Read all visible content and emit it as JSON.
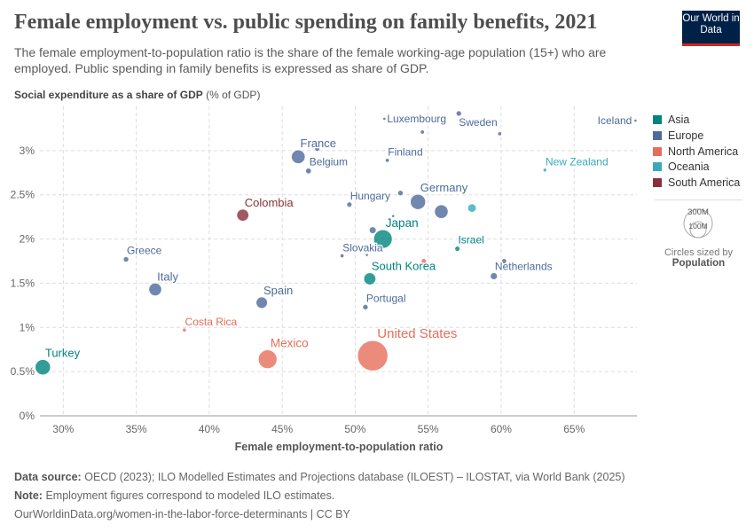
{
  "header": {
    "title": "Female employment vs. public spending on family benefits, 2021",
    "subtitle": "The female employment-to-population ratio is the share of the female working-age population (15+) who are employed. Public spending in family benefits is expressed as share of GDP.",
    "logo": "Our World in Data"
  },
  "chart_data": {
    "type": "scatter",
    "title": "Female employment vs. public spending on family benefits, 2021",
    "ylabel_bold": "Social expenditure as a share of GDP",
    "ylabel_unit": "(% of GDP)",
    "xlabel": "Female employment-to-population ratio",
    "xlim": [
      28.4,
      69.3
    ],
    "ylim": [
      0,
      3.5
    ],
    "xticks": [
      "30%",
      "35%",
      "40%",
      "45%",
      "50%",
      "55%",
      "60%",
      "65%"
    ],
    "xtick_values": [
      30,
      35,
      40,
      45,
      50,
      55,
      60,
      65
    ],
    "yticks": [
      "0%",
      "0.5%",
      "1%",
      "1.5%",
      "2%",
      "2.5%",
      "3%"
    ],
    "ytick_values": [
      0,
      0.5,
      1,
      1.5,
      2,
      2.5,
      3
    ],
    "grid": true,
    "legend_position": "right",
    "colors": {
      "Asia": "#00847e",
      "Europe": "#4c6a9c",
      "North America": "#e56e5a",
      "Oceania": "#38aaba",
      "South America": "#883039"
    },
    "legend": [
      "Asia",
      "Europe",
      "North America",
      "Oceania",
      "South America"
    ],
    "size_legend": {
      "large": "300M",
      "small": "100M",
      "caption": "Circles sized by",
      "variable": "Population",
      "large_value": 300,
      "small_value": 100
    },
    "points": [
      {
        "label": "Turkey",
        "region": "Asia",
        "x": 28.6,
        "y": 0.55,
        "pop": 85
      },
      {
        "label": "Greece",
        "region": "Europe",
        "x": 34.3,
        "y": 1.77,
        "pop": 10.4
      },
      {
        "label": "Italy",
        "region": "Europe",
        "x": 36.3,
        "y": 1.43,
        "pop": 59
      },
      {
        "label": "Costa Rica",
        "region": "North America",
        "x": 38.3,
        "y": 0.97,
        "pop": 5.1
      },
      {
        "label": "Colombia",
        "region": "South America",
        "x": 42.3,
        "y": 2.27,
        "pop": 52
      },
      {
        "label": "Spain",
        "region": "Europe",
        "x": 43.6,
        "y": 1.28,
        "pop": 47
      },
      {
        "label": "Mexico",
        "region": "North America",
        "x": 44.0,
        "y": 0.64,
        "pop": 127
      },
      {
        "label": "",
        "region": "Europe",
        "x": 47.4,
        "y": 3.02,
        "pop": 9
      },
      {
        "label": "France",
        "region": "Europe",
        "x": 46.1,
        "y": 2.93,
        "pop": 68
      },
      {
        "label": "Belgium",
        "region": "Europe",
        "x": 46.8,
        "y": 2.77,
        "pop": 11.6
      },
      {
        "label": "Luxembourg",
        "region": "Europe",
        "x": 52.0,
        "y": 3.36,
        "pop": 0.6
      },
      {
        "label": "",
        "region": "Europe",
        "x": 54.6,
        "y": 3.21,
        "pop": 5.9
      },
      {
        "label": "Sweden",
        "region": "Europe",
        "x": 57.1,
        "y": 3.42,
        "pop": 10.4
      },
      {
        "label": "",
        "region": "Europe",
        "x": 59.9,
        "y": 3.19,
        "pop": 5.4
      },
      {
        "label": "Iceland",
        "region": "Europe",
        "x": 69.2,
        "y": 3.34,
        "pop": 0.37
      },
      {
        "label": "Finland",
        "region": "Europe",
        "x": 52.2,
        "y": 2.89,
        "pop": 5.5
      },
      {
        "label": "New Zealand",
        "region": "Oceania",
        "x": 63.0,
        "y": 2.78,
        "pop": 5.1
      },
      {
        "label": "Hungary",
        "region": "Europe",
        "x": 49.6,
        "y": 2.39,
        "pop": 9.7
      },
      {
        "label": "",
        "region": "Europe",
        "x": 53.1,
        "y": 2.52,
        "pop": 10.5
      },
      {
        "label": "Germany",
        "region": "Europe",
        "x": 54.3,
        "y": 2.42,
        "pop": 84
      },
      {
        "label": "",
        "region": "Europe",
        "x": 55.9,
        "y": 2.31,
        "pop": 67
      },
      {
        "label": "",
        "region": "Oceania",
        "x": 58.0,
        "y": 2.35,
        "pop": 26
      },
      {
        "label": "",
        "region": "Europe",
        "x": 52.6,
        "y": 2.26,
        "pop": 2.1
      },
      {
        "label": "",
        "region": "Europe",
        "x": 51.2,
        "y": 2.1,
        "pop": 17
      },
      {
        "label": "Japan",
        "region": "Asia",
        "x": 51.9,
        "y": 2.0,
        "pop": 125
      },
      {
        "label": "Israel",
        "region": "Asia",
        "x": 57.0,
        "y": 1.89,
        "pop": 9.4
      },
      {
        "label": "Slovakia",
        "region": "Europe",
        "x": 49.1,
        "y": 1.81,
        "pop": 5.4
      },
      {
        "label": "",
        "region": "Europe",
        "x": 50.8,
        "y": 1.82,
        "pop": 2.8
      },
      {
        "label": "",
        "region": "North America",
        "x": 54.7,
        "y": 1.75,
        "pop": 9
      },
      {
        "label": "",
        "region": "Europe",
        "x": 60.2,
        "y": 1.75,
        "pop": 9
      },
      {
        "label": "Netherlands",
        "region": "Europe",
        "x": 59.5,
        "y": 1.58,
        "pop": 17.5
      },
      {
        "label": "South Korea",
        "region": "Asia",
        "x": 51.0,
        "y": 1.55,
        "pop": 52
      },
      {
        "label": "Portugal",
        "region": "Europe",
        "x": 50.7,
        "y": 1.23,
        "pop": 10.3
      },
      {
        "label": "United States",
        "region": "North America",
        "x": 51.2,
        "y": 0.68,
        "pop": 335
      }
    ]
  },
  "footer": {
    "source_label": "Data source:",
    "source": "OECD (2023); ILO Modelled Estimates and Projections database (ILOEST) – ILOSTAT, via World Bank (2025)",
    "note_label": "Note:",
    "note": "Employment figures correspond to modeled ILO estimates.",
    "url": "OurWorldinData.org/women-in-the-labor-force-determinants | CC BY"
  }
}
